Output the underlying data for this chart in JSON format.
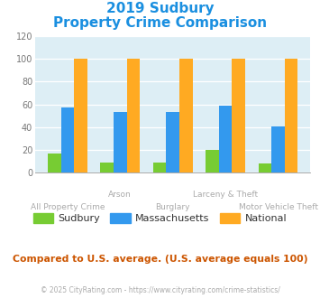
{
  "title_line1": "2019 Sudbury",
  "title_line2": "Property Crime Comparison",
  "title_color": "#1a8fe0",
  "categories": [
    "All Property Crime",
    "Arson",
    "Burglary",
    "Larceny & Theft",
    "Motor Vehicle Theft"
  ],
  "sudbury": [
    17,
    9,
    9,
    20,
    8
  ],
  "massachusetts": [
    57,
    53,
    53,
    59,
    41
  ],
  "national": [
    100,
    100,
    100,
    100,
    100
  ],
  "color_sudbury": "#77cc33",
  "color_massachusetts": "#3399ee",
  "color_national": "#ffaa22",
  "ylim": [
    0,
    120
  ],
  "yticks": [
    0,
    20,
    40,
    60,
    80,
    100,
    120
  ],
  "plot_bg": "#ddeef5",
  "footer_text": "© 2025 CityRating.com - https://www.cityrating.com/crime-statistics/",
  "note_text": "Compared to U.S. average. (U.S. average equals 100)",
  "note_color": "#cc5500",
  "footer_color": "#aaaaaa",
  "legend_labels": [
    "Sudbury",
    "Massachusetts",
    "National"
  ],
  "bar_width": 0.25,
  "top_labels": [
    "",
    "Arson",
    "",
    "Larceny & Theft",
    ""
  ],
  "bot_labels": [
    "All Property Crime",
    "",
    "Burglary",
    "",
    "Motor Vehicle Theft"
  ],
  "label_color": "#aaaaaa"
}
